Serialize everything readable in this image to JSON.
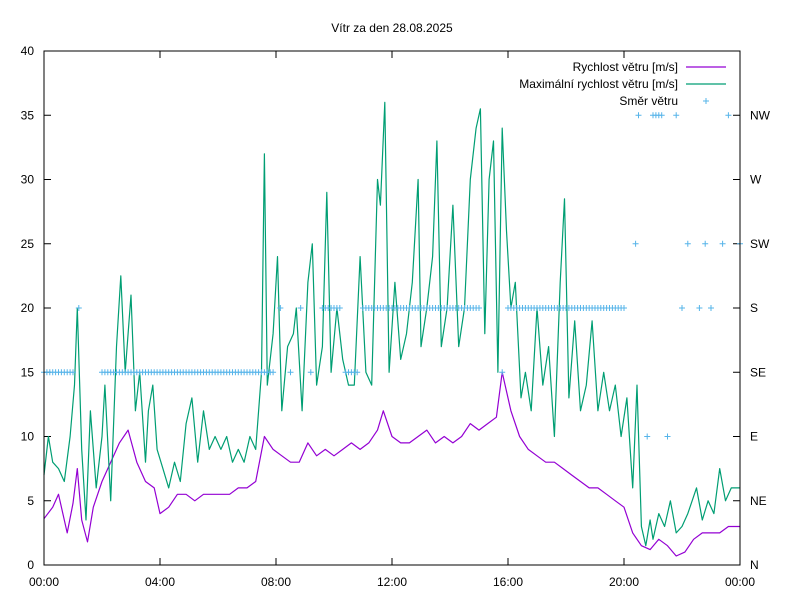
{
  "chart_data": {
    "type": "line",
    "title": "Vítr za den 28.08.2025",
    "xlabel": "",
    "ylabel": "",
    "x_range_hours": [
      0,
      24
    ],
    "x_ticks": [
      "00:00",
      "04:00",
      "08:00",
      "12:00",
      "16:00",
      "20:00",
      "00:00"
    ],
    "ylim": [
      0,
      40
    ],
    "y_ticks": [
      "0",
      "5",
      "10",
      "15",
      "20",
      "25",
      "30",
      "35",
      "40"
    ],
    "y2_ticks": [
      "N",
      "NE",
      "E",
      "SE",
      "S",
      "SW",
      "W",
      "NW"
    ],
    "grid": false,
    "legend_position": "top-right",
    "series": [
      {
        "name": "Rychlost větru [m/s]",
        "color": "#9400d3",
        "style": "line",
        "points": [
          [
            0.0,
            3.6
          ],
          [
            0.3,
            4.5
          ],
          [
            0.5,
            5.5
          ],
          [
            0.8,
            2.5
          ],
          [
            1.0,
            4.8
          ],
          [
            1.15,
            7.5
          ],
          [
            1.3,
            3.5
          ],
          [
            1.5,
            1.8
          ],
          [
            1.7,
            4.5
          ],
          [
            2.0,
            6.5
          ],
          [
            2.3,
            8.0
          ],
          [
            2.6,
            9.5
          ],
          [
            2.9,
            10.5
          ],
          [
            3.2,
            8.0
          ],
          [
            3.5,
            6.5
          ],
          [
            3.8,
            6.0
          ],
          [
            4.0,
            4.0
          ],
          [
            4.3,
            4.5
          ],
          [
            4.6,
            5.5
          ],
          [
            4.9,
            5.5
          ],
          [
            5.2,
            5.0
          ],
          [
            5.5,
            5.5
          ],
          [
            5.8,
            5.5
          ],
          [
            6.1,
            5.5
          ],
          [
            6.4,
            5.5
          ],
          [
            6.7,
            6.0
          ],
          [
            7.0,
            6.0
          ],
          [
            7.3,
            6.5
          ],
          [
            7.6,
            10.0
          ],
          [
            7.9,
            9.0
          ],
          [
            8.2,
            8.5
          ],
          [
            8.5,
            8.0
          ],
          [
            8.8,
            8.0
          ],
          [
            9.1,
            9.5
          ],
          [
            9.4,
            8.5
          ],
          [
            9.7,
            9.0
          ],
          [
            10.0,
            8.5
          ],
          [
            10.3,
            9.0
          ],
          [
            10.6,
            9.5
          ],
          [
            10.9,
            9.0
          ],
          [
            11.2,
            9.5
          ],
          [
            11.5,
            10.5
          ],
          [
            11.7,
            12.0
          ],
          [
            12.0,
            10.0
          ],
          [
            12.3,
            9.5
          ],
          [
            12.6,
            9.5
          ],
          [
            12.9,
            10.0
          ],
          [
            13.2,
            10.5
          ],
          [
            13.5,
            9.5
          ],
          [
            13.8,
            10.0
          ],
          [
            14.1,
            9.5
          ],
          [
            14.4,
            10.0
          ],
          [
            14.7,
            11.0
          ],
          [
            15.0,
            10.5
          ],
          [
            15.3,
            11.0
          ],
          [
            15.6,
            11.5
          ],
          [
            15.8,
            15.0
          ],
          [
            16.1,
            12.0
          ],
          [
            16.4,
            10.0
          ],
          [
            16.7,
            9.0
          ],
          [
            17.0,
            8.5
          ],
          [
            17.3,
            8.0
          ],
          [
            17.6,
            8.0
          ],
          [
            17.9,
            7.5
          ],
          [
            18.2,
            7.0
          ],
          [
            18.5,
            6.5
          ],
          [
            18.8,
            6.0
          ],
          [
            19.1,
            6.0
          ],
          [
            19.4,
            5.5
          ],
          [
            19.7,
            5.0
          ],
          [
            20.0,
            4.5
          ],
          [
            20.3,
            2.5
          ],
          [
            20.6,
            1.5
          ],
          [
            20.9,
            1.2
          ],
          [
            21.2,
            2.0
          ],
          [
            21.5,
            1.5
          ],
          [
            21.8,
            0.7
          ],
          [
            22.1,
            1.0
          ],
          [
            22.4,
            2.0
          ],
          [
            22.7,
            2.5
          ],
          [
            23.0,
            2.5
          ],
          [
            23.3,
            2.5
          ],
          [
            23.6,
            3.0
          ],
          [
            24.0,
            3.0
          ]
        ]
      },
      {
        "name": "Maximální rychlost větru [m/s]",
        "color": "#009e73",
        "style": "line",
        "points": [
          [
            0.0,
            7.0
          ],
          [
            0.15,
            10.0
          ],
          [
            0.3,
            8.0
          ],
          [
            0.5,
            7.5
          ],
          [
            0.7,
            6.5
          ],
          [
            0.9,
            10.0
          ],
          [
            1.05,
            14.0
          ],
          [
            1.15,
            20.0
          ],
          [
            1.3,
            9.0
          ],
          [
            1.45,
            3.5
          ],
          [
            1.6,
            12.0
          ],
          [
            1.8,
            6.0
          ],
          [
            2.0,
            10.0
          ],
          [
            2.1,
            14.0
          ],
          [
            2.3,
            5.0
          ],
          [
            2.5,
            17.0
          ],
          [
            2.65,
            22.5
          ],
          [
            2.8,
            15.0
          ],
          [
            3.0,
            21.0
          ],
          [
            3.15,
            12.0
          ],
          [
            3.3,
            15.0
          ],
          [
            3.5,
            8.0
          ],
          [
            3.6,
            12.0
          ],
          [
            3.75,
            14.0
          ],
          [
            3.9,
            9.0
          ],
          [
            4.1,
            7.5
          ],
          [
            4.3,
            6.0
          ],
          [
            4.5,
            8.0
          ],
          [
            4.7,
            6.5
          ],
          [
            4.9,
            11.0
          ],
          [
            5.1,
            13.0
          ],
          [
            5.3,
            8.0
          ],
          [
            5.5,
            12.0
          ],
          [
            5.7,
            9.0
          ],
          [
            5.9,
            10.0
          ],
          [
            6.1,
            9.0
          ],
          [
            6.3,
            10.0
          ],
          [
            6.5,
            8.0
          ],
          [
            6.7,
            9.0
          ],
          [
            6.9,
            8.0
          ],
          [
            7.1,
            10.0
          ],
          [
            7.3,
            9.0
          ],
          [
            7.5,
            15.0
          ],
          [
            7.6,
            32.0
          ],
          [
            7.7,
            14.0
          ],
          [
            7.9,
            18.0
          ],
          [
            8.05,
            24.0
          ],
          [
            8.2,
            12.0
          ],
          [
            8.4,
            17.0
          ],
          [
            8.6,
            18.0
          ],
          [
            8.7,
            20.0
          ],
          [
            8.9,
            12.0
          ],
          [
            9.1,
            22.0
          ],
          [
            9.25,
            25.0
          ],
          [
            9.4,
            14.0
          ],
          [
            9.6,
            17.0
          ],
          [
            9.75,
            29.0
          ],
          [
            9.9,
            15.0
          ],
          [
            10.1,
            20.0
          ],
          [
            10.3,
            16.0
          ],
          [
            10.5,
            14.0
          ],
          [
            10.7,
            14.0
          ],
          [
            10.9,
            24.0
          ],
          [
            11.1,
            15.0
          ],
          [
            11.3,
            14.0
          ],
          [
            11.5,
            30.0
          ],
          [
            11.6,
            28.0
          ],
          [
            11.75,
            36.0
          ],
          [
            11.9,
            15.0
          ],
          [
            12.1,
            22.0
          ],
          [
            12.3,
            16.0
          ],
          [
            12.5,
            18.0
          ],
          [
            12.7,
            22.0
          ],
          [
            12.9,
            30.0
          ],
          [
            13.0,
            17.0
          ],
          [
            13.2,
            20.0
          ],
          [
            13.4,
            24.0
          ],
          [
            13.55,
            33.0
          ],
          [
            13.7,
            17.0
          ],
          [
            13.9,
            20.0
          ],
          [
            14.1,
            28.0
          ],
          [
            14.3,
            17.0
          ],
          [
            14.5,
            20.0
          ],
          [
            14.7,
            30.0
          ],
          [
            14.9,
            34.0
          ],
          [
            15.05,
            35.5
          ],
          [
            15.2,
            18.0
          ],
          [
            15.35,
            30.0
          ],
          [
            15.5,
            33.0
          ],
          [
            15.65,
            15.0
          ],
          [
            15.8,
            34.0
          ],
          [
            15.95,
            26.0
          ],
          [
            16.1,
            20.0
          ],
          [
            16.25,
            22.0
          ],
          [
            16.45,
            13.0
          ],
          [
            16.6,
            15.0
          ],
          [
            16.8,
            12.0
          ],
          [
            17.0,
            20.0
          ],
          [
            17.2,
            14.0
          ],
          [
            17.4,
            17.0
          ],
          [
            17.6,
            10.0
          ],
          [
            17.8,
            22.0
          ],
          [
            17.95,
            28.5
          ],
          [
            18.1,
            13.0
          ],
          [
            18.3,
            19.0
          ],
          [
            18.5,
            12.0
          ],
          [
            18.7,
            14.0
          ],
          [
            18.9,
            19.0
          ],
          [
            19.1,
            12.0
          ],
          [
            19.3,
            15.0
          ],
          [
            19.5,
            12.0
          ],
          [
            19.7,
            14.0
          ],
          [
            19.9,
            10.0
          ],
          [
            20.1,
            13.0
          ],
          [
            20.3,
            6.0
          ],
          [
            20.45,
            14.0
          ],
          [
            20.6,
            3.0
          ],
          [
            20.75,
            1.5
          ],
          [
            20.9,
            3.5
          ],
          [
            21.0,
            2.0
          ],
          [
            21.2,
            4.0
          ],
          [
            21.4,
            3.0
          ],
          [
            21.6,
            5.0
          ],
          [
            21.8,
            2.5
          ],
          [
            22.0,
            3.0
          ],
          [
            22.2,
            4.0
          ],
          [
            22.5,
            6.0
          ],
          [
            22.7,
            3.5
          ],
          [
            22.9,
            5.0
          ],
          [
            23.1,
            4.0
          ],
          [
            23.3,
            7.5
          ],
          [
            23.5,
            5.0
          ],
          [
            23.7,
            6.0
          ],
          [
            24.0,
            6.0
          ]
        ]
      },
      {
        "name": "Směr větru",
        "color": "#56b4e9",
        "style": "points",
        "axis": "y2",
        "points": [
          [
            0.0,
            15
          ],
          [
            1.0,
            15
          ],
          [
            1.2,
            20
          ],
          [
            2.0,
            15
          ],
          [
            3.0,
            15
          ],
          [
            4.0,
            15
          ],
          [
            5.0,
            15
          ],
          [
            6.0,
            15
          ],
          [
            7.0,
            15
          ],
          [
            7.9,
            15
          ],
          [
            8.15,
            20
          ],
          [
            8.5,
            15
          ],
          [
            8.85,
            20
          ],
          [
            9.2,
            15
          ],
          [
            9.6,
            20
          ],
          [
            10.2,
            20
          ],
          [
            10.4,
            15
          ],
          [
            10.8,
            15
          ],
          [
            11.0,
            20
          ],
          [
            12.0,
            20
          ],
          [
            13.0,
            20
          ],
          [
            14.0,
            20
          ],
          [
            15.0,
            20
          ],
          [
            15.8,
            15
          ],
          [
            16.0,
            20
          ],
          [
            17.0,
            20
          ],
          [
            18.0,
            20
          ],
          [
            19.0,
            20
          ],
          [
            20.0,
            20
          ],
          [
            20.4,
            25
          ],
          [
            20.5,
            35
          ],
          [
            20.8,
            10
          ],
          [
            21.0,
            35
          ],
          [
            21.3,
            35
          ],
          [
            21.5,
            10
          ],
          [
            21.8,
            35
          ],
          [
            22.0,
            20
          ],
          [
            22.2,
            25
          ],
          [
            22.6,
            20
          ],
          [
            22.8,
            25
          ],
          [
            23.0,
            20
          ],
          [
            23.4,
            25
          ],
          [
            23.6,
            35
          ],
          [
            24.0,
            25
          ]
        ]
      }
    ]
  }
}
